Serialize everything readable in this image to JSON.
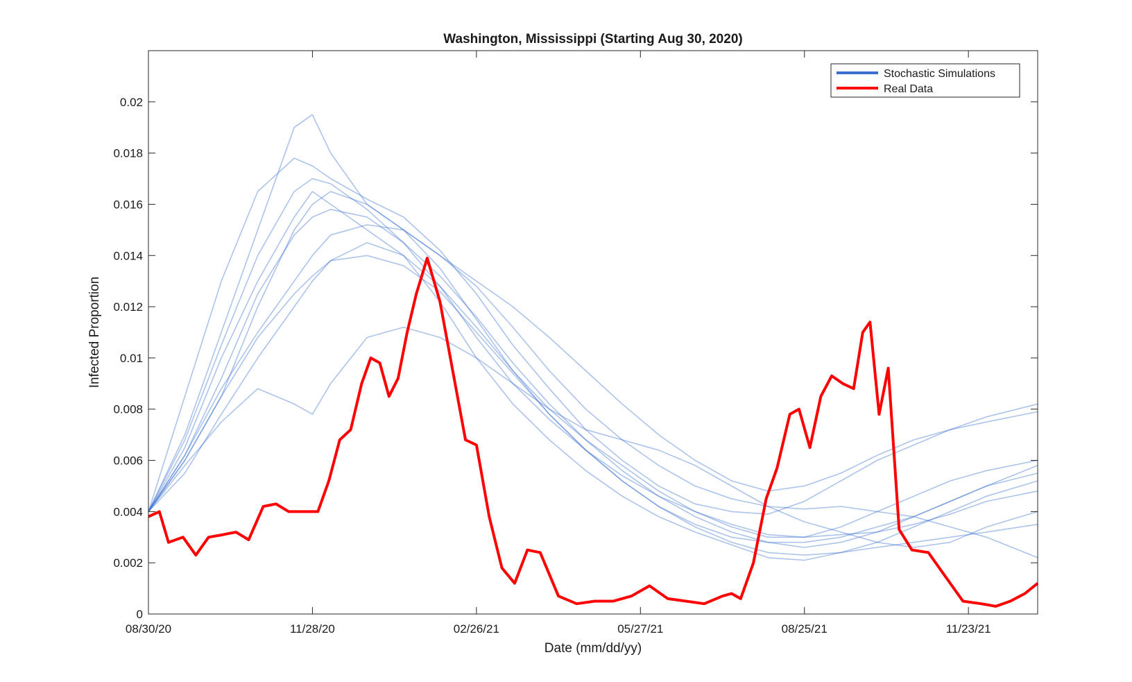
{
  "chart_data": {
    "type": "line",
    "title": "Washington, Mississippi (Starting Aug 30, 2020)",
    "xlabel": "Date (mm/dd/yy)",
    "ylabel": "Infected Proportion",
    "xlim": [
      "2020-08-30",
      "2021-12-31"
    ],
    "ylim": [
      0,
      0.022
    ],
    "x_ticks": [
      "2020-08-30",
      "2020-11-28",
      "2021-02-26",
      "2021-05-27",
      "2021-08-25",
      "2021-11-23"
    ],
    "x_tick_labels": [
      "08/30/20",
      "11/28/20",
      "02/26/21",
      "05/27/21",
      "08/25/21",
      "11/23/21"
    ],
    "y_ticks": [
      0,
      0.002,
      0.004,
      0.006,
      0.008,
      0.01,
      0.012,
      0.014,
      0.016,
      0.018,
      0.02
    ],
    "y_tick_labels": [
      "0",
      "0.002",
      "0.004",
      "0.006",
      "0.008",
      "0.01",
      "0.012",
      "0.014",
      "0.016",
      "0.018",
      "0.02"
    ],
    "legend_position": "top-right",
    "grid": false,
    "colors": {
      "simulations": "#3a6fcf",
      "real": "#ff0000"
    },
    "series": [
      {
        "name": "Stochastic Simulations",
        "role": "legend",
        "color": "#3a6fcf"
      },
      {
        "name": "Real Data",
        "role": "legend",
        "color": "#ff0000"
      }
    ],
    "simulations": [
      {
        "x": [
          "2020-08-30",
          "2020-09-19",
          "2020-10-09",
          "2020-10-29",
          "2020-11-18",
          "2020-11-28",
          "2020-12-08",
          "2020-12-28",
          "2021-01-17",
          "2021-02-06",
          "2021-02-26",
          "2021-03-18",
          "2021-04-07",
          "2021-04-27",
          "2021-05-17",
          "2021-06-06",
          "2021-06-26",
          "2021-07-16",
          "2021-08-05",
          "2021-08-25",
          "2021-09-14",
          "2021-10-04",
          "2021-10-24",
          "2021-11-13",
          "2021-12-03",
          "2021-12-31"
        ],
        "y": [
          0.004,
          0.0085,
          0.013,
          0.0165,
          0.0178,
          0.0175,
          0.017,
          0.0162,
          0.0155,
          0.0142,
          0.0125,
          0.0105,
          0.0088,
          0.0072,
          0.006,
          0.005,
          0.0043,
          0.004,
          0.0039,
          0.0044,
          0.0052,
          0.006,
          0.0066,
          0.0072,
          0.0077,
          0.0082
        ]
      },
      {
        "x": [
          "2020-08-30",
          "2020-09-19",
          "2020-10-09",
          "2020-10-29",
          "2020-11-18",
          "2020-11-28",
          "2020-12-08",
          "2020-12-28",
          "2021-01-17",
          "2021-02-06",
          "2021-02-26",
          "2021-03-18",
          "2021-04-07",
          "2021-04-27",
          "2021-05-17",
          "2021-06-06",
          "2021-06-26",
          "2021-07-16",
          "2021-08-05",
          "2021-08-25",
          "2021-09-14",
          "2021-10-04",
          "2021-10-24",
          "2021-11-13",
          "2021-12-03",
          "2021-12-31"
        ],
        "y": [
          0.004,
          0.007,
          0.011,
          0.015,
          0.019,
          0.0195,
          0.018,
          0.016,
          0.015,
          0.0135,
          0.0115,
          0.0095,
          0.0078,
          0.0064,
          0.0052,
          0.0042,
          0.0035,
          0.003,
          0.0028,
          0.0028,
          0.003,
          0.0034,
          0.0038,
          0.0044,
          0.005,
          0.0058
        ]
      },
      {
        "x": [
          "2020-08-30",
          "2020-09-19",
          "2020-10-09",
          "2020-10-29",
          "2020-11-18",
          "2020-11-28",
          "2020-12-08",
          "2020-12-28",
          "2021-01-17",
          "2021-02-06",
          "2021-02-26",
          "2021-03-18",
          "2021-04-07",
          "2021-04-27",
          "2021-05-17",
          "2021-06-06",
          "2021-06-26",
          "2021-07-16",
          "2021-08-05",
          "2021-08-25",
          "2021-09-14",
          "2021-10-04",
          "2021-10-24",
          "2021-11-13",
          "2021-12-03",
          "2021-12-31"
        ],
        "y": [
          0.004,
          0.0062,
          0.0088,
          0.011,
          0.013,
          0.014,
          0.0148,
          0.0152,
          0.015,
          0.014,
          0.0128,
          0.0112,
          0.0095,
          0.008,
          0.0068,
          0.0058,
          0.005,
          0.0045,
          0.0042,
          0.0041,
          0.0042,
          0.004,
          0.0038,
          0.0034,
          0.003,
          0.0022
        ]
      },
      {
        "x": [
          "2020-08-30",
          "2020-09-19",
          "2020-10-09",
          "2020-10-29",
          "2020-11-18",
          "2020-11-28",
          "2020-12-08",
          "2020-12-28",
          "2021-01-17",
          "2021-02-06",
          "2021-02-26",
          "2021-03-18",
          "2021-04-07",
          "2021-04-27",
          "2021-05-17",
          "2021-06-06",
          "2021-06-26",
          "2021-07-16",
          "2021-08-05",
          "2021-08-25",
          "2021-09-14",
          "2021-10-04",
          "2021-10-24",
          "2021-11-13",
          "2021-12-03",
          "2021-12-31"
        ],
        "y": [
          0.004,
          0.006,
          0.0085,
          0.012,
          0.015,
          0.016,
          0.0165,
          0.016,
          0.015,
          0.014,
          0.013,
          0.012,
          0.0108,
          0.0095,
          0.0082,
          0.007,
          0.006,
          0.0052,
          0.0048,
          0.005,
          0.0055,
          0.0062,
          0.0068,
          0.0072,
          0.0075,
          0.0079
        ]
      },
      {
        "x": [
          "2020-08-30",
          "2020-09-19",
          "2020-10-09",
          "2020-10-29",
          "2020-11-18",
          "2020-11-28",
          "2020-12-08",
          "2020-12-28",
          "2021-01-17",
          "2021-02-06",
          "2021-02-26",
          "2021-03-18",
          "2021-04-07",
          "2021-04-27",
          "2021-05-17",
          "2021-06-06",
          "2021-06-26",
          "2021-07-16",
          "2021-08-05",
          "2021-08-25",
          "2021-09-14",
          "2021-10-04",
          "2021-10-24",
          "2021-11-13",
          "2021-12-03",
          "2021-12-31"
        ],
        "y": [
          0.004,
          0.0058,
          0.0075,
          0.0088,
          0.0082,
          0.0078,
          0.009,
          0.0108,
          0.0112,
          0.0108,
          0.01,
          0.009,
          0.008,
          0.0072,
          0.0068,
          0.0064,
          0.0058,
          0.005,
          0.0042,
          0.0036,
          0.0032,
          0.0028,
          0.0026,
          0.0028,
          0.0034,
          0.004
        ]
      },
      {
        "x": [
          "2020-08-30",
          "2020-09-19",
          "2020-10-09",
          "2020-10-29",
          "2020-11-18",
          "2020-11-28",
          "2020-12-08",
          "2020-12-28",
          "2021-01-17",
          "2021-02-06",
          "2021-02-26",
          "2021-03-18",
          "2021-04-07",
          "2021-04-27",
          "2021-05-17",
          "2021-06-06",
          "2021-06-26",
          "2021-07-16",
          "2021-08-05",
          "2021-08-25",
          "2021-09-14",
          "2021-10-04",
          "2021-10-24",
          "2021-11-13",
          "2021-12-03",
          "2021-12-31"
        ],
        "y": [
          0.004,
          0.0065,
          0.01,
          0.013,
          0.0155,
          0.0165,
          0.016,
          0.015,
          0.014,
          0.0122,
          0.01,
          0.0082,
          0.0068,
          0.0056,
          0.0046,
          0.0038,
          0.0032,
          0.0027,
          0.0022,
          0.0021,
          0.0024,
          0.0028,
          0.0034,
          0.004,
          0.0046,
          0.0052
        ]
      },
      {
        "x": [
          "2020-08-30",
          "2020-09-19",
          "2020-10-09",
          "2020-10-29",
          "2020-11-18",
          "2020-11-28",
          "2020-12-08",
          "2020-12-28",
          "2021-01-17",
          "2021-02-06",
          "2021-02-26",
          "2021-03-18",
          "2021-04-07",
          "2021-04-27",
          "2021-05-17",
          "2021-06-06",
          "2021-06-26",
          "2021-07-16",
          "2021-08-05",
          "2021-08-25",
          "2021-09-14",
          "2021-10-04",
          "2021-10-24",
          "2021-11-13",
          "2021-12-03",
          "2021-12-31"
        ],
        "y": [
          0.004,
          0.0068,
          0.0105,
          0.014,
          0.0165,
          0.017,
          0.0168,
          0.0158,
          0.0145,
          0.0128,
          0.0108,
          0.009,
          0.0076,
          0.0064,
          0.0054,
          0.0046,
          0.004,
          0.0035,
          0.0031,
          0.003,
          0.0031,
          0.0032,
          0.0035,
          0.0039,
          0.0044,
          0.0048
        ]
      },
      {
        "x": [
          "2020-08-30",
          "2020-09-19",
          "2020-10-09",
          "2020-10-29",
          "2020-11-18",
          "2020-11-28",
          "2020-12-08",
          "2020-12-28",
          "2021-01-17",
          "2021-02-06",
          "2021-02-26",
          "2021-03-18",
          "2021-04-07",
          "2021-04-27",
          "2021-05-17",
          "2021-06-06",
          "2021-06-26",
          "2021-07-16",
          "2021-08-05",
          "2021-08-25",
          "2021-09-14",
          "2021-10-04",
          "2021-10-24",
          "2021-11-13",
          "2021-12-03",
          "2021-12-31"
        ],
        "y": [
          0.004,
          0.0055,
          0.0078,
          0.01,
          0.012,
          0.013,
          0.0138,
          0.0145,
          0.014,
          0.0128,
          0.0112,
          0.0095,
          0.008,
          0.0068,
          0.0058,
          0.0048,
          0.004,
          0.0034,
          0.003,
          0.003,
          0.0034,
          0.004,
          0.0046,
          0.0052,
          0.0056,
          0.006
        ]
      },
      {
        "x": [
          "2020-08-30",
          "2020-09-19",
          "2020-10-09",
          "2020-10-29",
          "2020-11-18",
          "2020-11-28",
          "2020-12-08",
          "2020-12-28",
          "2021-01-17",
          "2021-02-06",
          "2021-02-26",
          "2021-03-18",
          "2021-04-07",
          "2021-04-27",
          "2021-05-17",
          "2021-06-06",
          "2021-06-26",
          "2021-07-16",
          "2021-08-05",
          "2021-08-25",
          "2021-09-14",
          "2021-10-04",
          "2021-10-24",
          "2021-11-13",
          "2021-12-03",
          "2021-12-31"
        ],
        "y": [
          0.004,
          0.0062,
          0.0092,
          0.0125,
          0.0148,
          0.0155,
          0.0158,
          0.0155,
          0.0145,
          0.0132,
          0.0116,
          0.0098,
          0.0082,
          0.0068,
          0.0056,
          0.0046,
          0.0038,
          0.0032,
          0.0028,
          0.0026,
          0.0028,
          0.0032,
          0.0038,
          0.0044,
          0.005,
          0.0055
        ]
      },
      {
        "x": [
          "2020-08-30",
          "2020-09-19",
          "2020-10-09",
          "2020-10-29",
          "2020-11-18",
          "2020-11-28",
          "2020-12-08",
          "2020-12-28",
          "2021-01-17",
          "2021-02-06",
          "2021-02-26",
          "2021-03-18",
          "2021-04-07",
          "2021-04-27",
          "2021-05-17",
          "2021-06-06",
          "2021-06-26",
          "2021-07-16",
          "2021-08-05",
          "2021-08-25",
          "2021-09-14",
          "2021-10-04",
          "2021-10-24",
          "2021-11-13",
          "2021-12-03",
          "2021-12-31"
        ],
        "y": [
          0.004,
          0.006,
          0.0085,
          0.0108,
          0.0125,
          0.0132,
          0.0138,
          0.014,
          0.0136,
          0.0126,
          0.011,
          0.0094,
          0.0078,
          0.0064,
          0.0052,
          0.0042,
          0.0034,
          0.0028,
          0.0024,
          0.0023,
          0.0024,
          0.0026,
          0.0028,
          0.003,
          0.0032,
          0.0035
        ]
      }
    ],
    "real": {
      "x": [
        "2020-08-30",
        "2020-09-05",
        "2020-09-10",
        "2020-09-18",
        "2020-09-25",
        "2020-10-02",
        "2020-10-10",
        "2020-10-17",
        "2020-10-24",
        "2020-11-01",
        "2020-11-08",
        "2020-11-15",
        "2020-11-22",
        "2020-12-01",
        "2020-12-07",
        "2020-12-13",
        "2020-12-19",
        "2020-12-25",
        "2020-12-30",
        "2021-01-04",
        "2021-01-09",
        "2021-01-14",
        "2021-01-19",
        "2021-01-24",
        "2021-01-30",
        "2021-02-06",
        "2021-02-13",
        "2021-02-20",
        "2021-02-26",
        "2021-03-05",
        "2021-03-12",
        "2021-03-19",
        "2021-03-26",
        "2021-04-02",
        "2021-04-12",
        "2021-04-22",
        "2021-05-02",
        "2021-05-12",
        "2021-05-22",
        "2021-06-01",
        "2021-06-11",
        "2021-06-21",
        "2021-07-01",
        "2021-07-11",
        "2021-07-16",
        "2021-07-21",
        "2021-07-28",
        "2021-08-04",
        "2021-08-10",
        "2021-08-17",
        "2021-08-22",
        "2021-08-28",
        "2021-09-03",
        "2021-09-09",
        "2021-09-15",
        "2021-09-21",
        "2021-09-26",
        "2021-09-30",
        "2021-10-05",
        "2021-10-10",
        "2021-10-16",
        "2021-10-23",
        "2021-11-01",
        "2021-11-10",
        "2021-11-20",
        "2021-11-30",
        "2021-12-08",
        "2021-12-16",
        "2021-12-24",
        "2021-12-31"
      ],
      "y": [
        0.0038,
        0.004,
        0.0028,
        0.003,
        0.0023,
        0.003,
        0.0031,
        0.0032,
        0.0029,
        0.0042,
        0.0043,
        0.004,
        0.004,
        0.004,
        0.0052,
        0.0068,
        0.0072,
        0.009,
        0.01,
        0.0098,
        0.0085,
        0.0092,
        0.011,
        0.0125,
        0.0139,
        0.0122,
        0.0095,
        0.0068,
        0.0066,
        0.0038,
        0.0018,
        0.0012,
        0.0025,
        0.0024,
        0.0007,
        0.0004,
        0.0005,
        0.0005,
        0.0007,
        0.0011,
        0.0006,
        0.0005,
        0.0004,
        0.0007,
        0.0008,
        0.0006,
        0.002,
        0.0045,
        0.0057,
        0.0078,
        0.008,
        0.0065,
        0.0085,
        0.0093,
        0.009,
        0.0088,
        0.011,
        0.0114,
        0.0078,
        0.0096,
        0.0033,
        0.0025,
        0.0024,
        0.0015,
        0.0005,
        0.0004,
        0.0003,
        0.0005,
        0.0008,
        0.0012
      ]
    }
  }
}
